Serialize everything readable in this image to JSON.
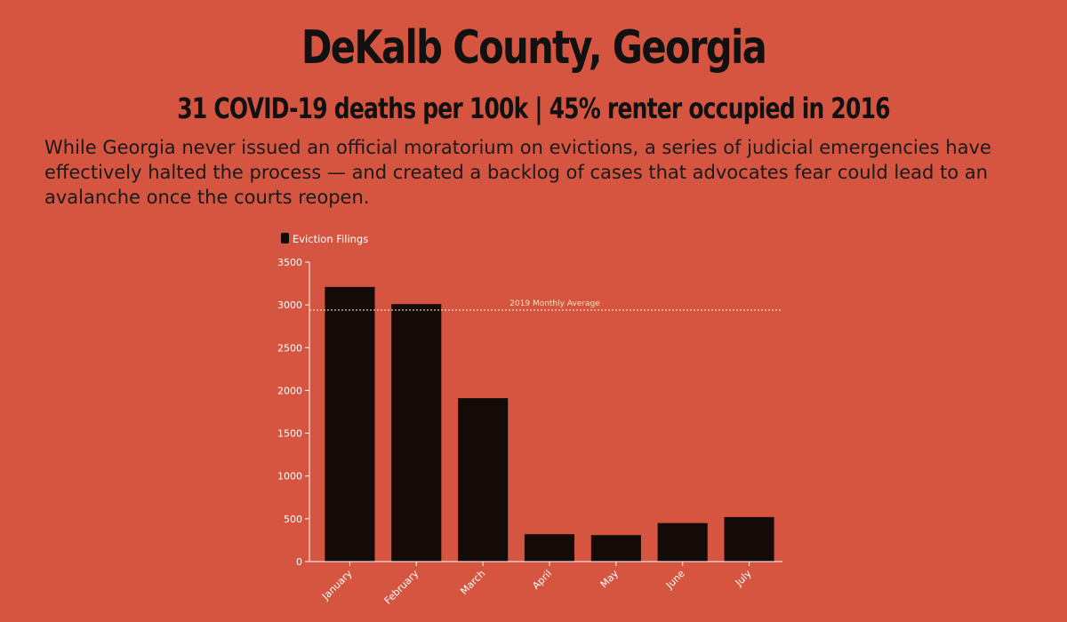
{
  "header": {
    "title": "DeKalb County, Georgia",
    "subtitle": "31 COVID-19 deaths per 100k | 45% renter occupied in 2016",
    "intro": "While Georgia never issued an official moratorium on evictions, a series of judicial emergencies have effectively halted the process — and created a backlog of cases that advocates fear could lead to an avalanche once the courts reopen."
  },
  "chart_data": {
    "type": "bar",
    "categories": [
      "January",
      "February",
      "March",
      "April",
      "May",
      "June",
      "July"
    ],
    "series": [
      {
        "name": "Eviction Filings",
        "values": [
          3210,
          3010,
          1910,
          320,
          310,
          450,
          520
        ]
      }
    ],
    "ylim": [
      0,
      3500
    ],
    "yticks": [
      0,
      500,
      1000,
      1500,
      2000,
      2500,
      3000,
      3500
    ],
    "reference_line": {
      "label": "2019 Monthly Average",
      "value": 2940
    },
    "legend_position": "top-left",
    "grid": false,
    "colors": {
      "background": "#d55540",
      "bar": "#140b08",
      "axis": "#ffffff",
      "reference_line": "#f7e3c0"
    }
  }
}
